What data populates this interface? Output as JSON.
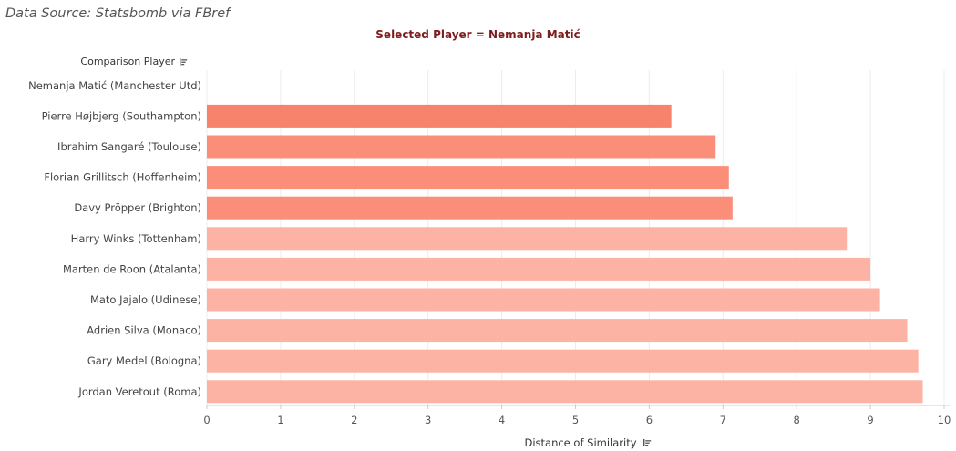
{
  "header": {
    "source": "Data Source: Statsbomb via FBref",
    "subtitle": "Selected Player = Nemanja Matić"
  },
  "chart_data": {
    "type": "bar",
    "orientation": "horizontal",
    "subtitle": "Selected Player = Nemanja Matić",
    "category_header": "Comparison Player",
    "xlabel": "Distance of Similarity",
    "xlim": [
      0,
      10
    ],
    "xticks": [
      0,
      1,
      2,
      3,
      4,
      5,
      6,
      7,
      8,
      9,
      10
    ],
    "grid": true,
    "categories": [
      "Nemanja Matić (Manchester Utd)",
      "Pierre Højbjerg (Southampton)",
      "Ibrahim Sangaré (Toulouse)",
      "Florian Grillitsch (Hoffenheim)",
      "Davy Pröpper (Brighton)",
      "Harry Winks (Tottenham)",
      "Marten de Roon (Atalanta)",
      "Mato Jajalo (Udinese)",
      "Adrien Silva (Monaco)",
      "Gary Medel (Bologna)",
      "Jordan Veretout (Roma)"
    ],
    "values": [
      0,
      6.3,
      6.9,
      7.08,
      7.13,
      8.68,
      9.0,
      9.13,
      9.5,
      9.65,
      9.71
    ],
    "colors": [
      "#f8836c",
      "#f8836c",
      "#fa8e78",
      "#fa8e78",
      "#fa8e78",
      "#fdb3a4",
      "#fdb3a4",
      "#fdb3a4",
      "#fdb3a4",
      "#fdb3a4",
      "#fdb3a4"
    ]
  }
}
